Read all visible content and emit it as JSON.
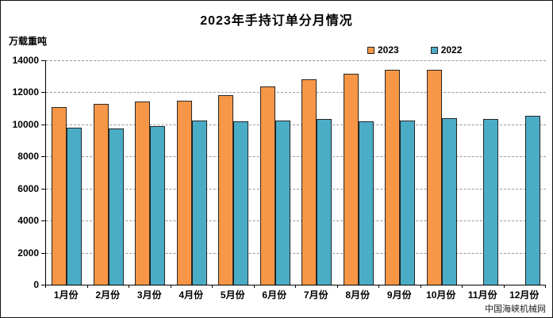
{
  "watermark": "中国海峡机械网",
  "chart_data": {
    "type": "bar",
    "title": "2023年手持订单分月情况",
    "ylabel": "万载重吨",
    "xlabel": "",
    "categories": [
      "1月份",
      "2月份",
      "3月份",
      "4月份",
      "5月份",
      "6月份",
      "7月份",
      "8月份",
      "9月份",
      "10月份",
      "11月份",
      "12月份"
    ],
    "series": [
      {
        "name": "2023",
        "color": "#F79646",
        "values": [
          11100,
          11300,
          11450,
          11500,
          11800,
          12350,
          12800,
          13150,
          13400,
          13400,
          null,
          null
        ]
      },
      {
        "name": "2022",
        "color": "#4BACC6",
        "values": [
          9800,
          9750,
          9900,
          10250,
          10200,
          10250,
          10350,
          10200,
          10250,
          10400,
          10350,
          10550
        ]
      }
    ],
    "ylim": [
      0,
      14000
    ],
    "ytick_step": 2000,
    "yticks": [
      0,
      2000,
      4000,
      6000,
      8000,
      10000,
      12000,
      14000
    ],
    "grid": "horizontal-dashed",
    "legend_position": "top-right",
    "bar_border_color": "#262626"
  }
}
